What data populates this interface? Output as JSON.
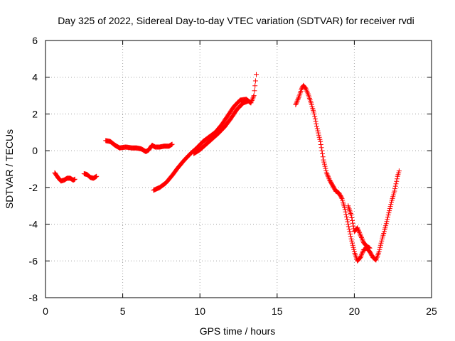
{
  "chart_data": {
    "type": "scatter",
    "title": "Day 325 of 2022, Sidereal Day-to-day VTEC variation (SDTVAR) for receiver rvdi",
    "xlabel": "GPS time / hours",
    "ylabel": "SDTVAR / TECUs",
    "xlim": [
      0,
      25
    ],
    "ylim": [
      -8,
      6
    ],
    "xticks": [
      "0",
      "5",
      "10",
      "15",
      "20",
      "25"
    ],
    "yticks": [
      "-8",
      "-6",
      "-4",
      "-2",
      "0",
      "2",
      "4",
      "6"
    ],
    "grid": true,
    "marker": "+",
    "series": [
      {
        "color": "#ff0000",
        "segments": [
          [
            [
              0.6,
              -1.2
            ],
            [
              0.8,
              -1.45
            ],
            [
              1.0,
              -1.65
            ],
            [
              1.2,
              -1.6
            ],
            [
              1.4,
              -1.5
            ],
            [
              1.6,
              -1.5
            ],
            [
              1.8,
              -1.6
            ],
            [
              1.9,
              -1.55
            ]
          ],
          [
            [
              2.5,
              -1.25
            ],
            [
              2.7,
              -1.3
            ],
            [
              2.9,
              -1.45
            ],
            [
              3.1,
              -1.5
            ],
            [
              3.3,
              -1.4
            ]
          ],
          [
            [
              3.9,
              0.55
            ],
            [
              4.2,
              0.5
            ],
            [
              4.5,
              0.3
            ],
            [
              4.8,
              0.15
            ],
            [
              5.2,
              0.2
            ],
            [
              5.6,
              0.15
            ],
            [
              5.9,
              0.15
            ],
            [
              6.2,
              0.1
            ],
            [
              6.5,
              -0.05
            ],
            [
              6.7,
              0.05
            ],
            [
              6.9,
              0.3
            ],
            [
              7.1,
              0.2
            ],
            [
              7.4,
              0.2
            ],
            [
              7.7,
              0.25
            ],
            [
              8.0,
              0.25
            ],
            [
              8.2,
              0.35
            ]
          ],
          [
            [
              7.0,
              -2.15
            ],
            [
              7.4,
              -2.0
            ],
            [
              7.8,
              -1.75
            ],
            [
              8.2,
              -1.35
            ],
            [
              8.6,
              -0.9
            ],
            [
              9.0,
              -0.5
            ],
            [
              9.4,
              -0.15
            ],
            [
              9.8,
              0.15
            ],
            [
              10.2,
              0.5
            ],
            [
              10.6,
              0.75
            ],
            [
              11.0,
              1.0
            ],
            [
              11.4,
              1.4
            ],
            [
              11.8,
              1.9
            ],
            [
              12.2,
              2.4
            ],
            [
              12.6,
              2.75
            ],
            [
              13.0,
              2.8
            ],
            [
              13.3,
              2.6
            ],
            [
              13.5,
              3.0
            ],
            [
              13.6,
              3.8
            ],
            [
              13.65,
              4.15
            ]
          ],
          [
            [
              9.6,
              -0.15
            ],
            [
              10.0,
              0.05
            ],
            [
              10.4,
              0.35
            ],
            [
              10.8,
              0.65
            ],
            [
              11.2,
              0.95
            ],
            [
              11.6,
              1.3
            ],
            [
              12.0,
              1.75
            ],
            [
              12.4,
              2.25
            ],
            [
              12.8,
              2.6
            ],
            [
              13.1,
              2.7
            ]
          ],
          [
            [
              16.2,
              2.5
            ],
            [
              16.4,
              2.9
            ],
            [
              16.6,
              3.4
            ],
            [
              16.7,
              3.55
            ],
            [
              16.85,
              3.4
            ],
            [
              17.0,
              3.1
            ],
            [
              17.2,
              2.6
            ],
            [
              17.4,
              2.0
            ],
            [
              17.6,
              1.2
            ],
            [
              17.8,
              0.5
            ],
            [
              17.9,
              0.0
            ],
            [
              18.0,
              -0.5
            ],
            [
              18.2,
              -1.2
            ],
            [
              18.4,
              -1.6
            ],
            [
              18.6,
              -1.9
            ],
            [
              18.8,
              -2.2
            ],
            [
              19.0,
              -2.3
            ],
            [
              19.2,
              -2.6
            ],
            [
              19.4,
              -3.2
            ],
            [
              19.6,
              -4.0
            ],
            [
              19.8,
              -4.8
            ],
            [
              20.0,
              -5.5
            ],
            [
              20.2,
              -6.0
            ],
            [
              20.4,
              -5.8
            ],
            [
              20.6,
              -5.4
            ],
            [
              20.8,
              -5.3
            ],
            [
              21.0,
              -5.5
            ],
            [
              21.2,
              -5.8
            ],
            [
              21.4,
              -5.95
            ],
            [
              21.6,
              -5.5
            ],
            [
              21.8,
              -4.8
            ],
            [
              22.0,
              -4.2
            ],
            [
              22.2,
              -3.5
            ],
            [
              22.4,
              -2.8
            ],
            [
              22.6,
              -2.2
            ],
            [
              22.8,
              -1.4
            ],
            [
              22.9,
              -1.1
            ]
          ],
          [
            [
              19.6,
              -3.0
            ],
            [
              19.8,
              -3.5
            ],
            [
              20.0,
              -4.4
            ],
            [
              20.2,
              -4.2
            ],
            [
              20.4,
              -4.6
            ],
            [
              20.6,
              -5.0
            ],
            [
              20.8,
              -5.2
            ],
            [
              21.0,
              -5.3
            ]
          ]
        ]
      }
    ]
  }
}
